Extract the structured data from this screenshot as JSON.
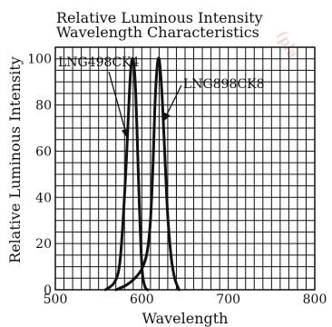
{
  "chart_data": {
    "type": "line",
    "title": [
      "Relative Luminous Intensity",
      "Wavelength Characteristics"
    ],
    "xlabel": "Wavelength",
    "ylabel": "Relative Luminous Intensity",
    "xlim": [
      500,
      800
    ],
    "ylim": [
      0,
      105
    ],
    "x_ticks": [
      500,
      600,
      700,
      800
    ],
    "y_ticks": [
      0,
      20,
      40,
      60,
      80,
      100
    ],
    "grid": true,
    "line_color": "#111111",
    "series": [
      {
        "name": "LNG498CK4",
        "points": [
          [
            558,
            0
          ],
          [
            568,
            3
          ],
          [
            574,
            10
          ],
          [
            578,
            28
          ],
          [
            582,
            55
          ],
          [
            585,
            80
          ],
          [
            587,
            94
          ],
          [
            589,
            100
          ],
          [
            591,
            97
          ],
          [
            593,
            85
          ],
          [
            595,
            62
          ],
          [
            597,
            38
          ],
          [
            599,
            18
          ],
          [
            601,
            6
          ],
          [
            604,
            1
          ],
          [
            607,
            0
          ]
        ]
      },
      {
        "name": "LNG898CK8",
        "points": [
          [
            570,
            0
          ],
          [
            582,
            2
          ],
          [
            592,
            5
          ],
          [
            600,
            9
          ],
          [
            606,
            16
          ],
          [
            610,
            30
          ],
          [
            613,
            55
          ],
          [
            615,
            78
          ],
          [
            617,
            93
          ],
          [
            619,
            100
          ],
          [
            621,
            97
          ],
          [
            624,
            80
          ],
          [
            627,
            55
          ],
          [
            630,
            32
          ],
          [
            634,
            14
          ],
          [
            638,
            5
          ],
          [
            643,
            0
          ]
        ]
      }
    ],
    "annotations": [
      {
        "label": "LNG498CK4",
        "series": 0,
        "arrow_to": [
          583,
          66
        ]
      },
      {
        "label": "LNG898CK8",
        "series": 1,
        "arrow_to": [
          625,
          73
        ]
      }
    ]
  },
  "watermark": "(pla"
}
